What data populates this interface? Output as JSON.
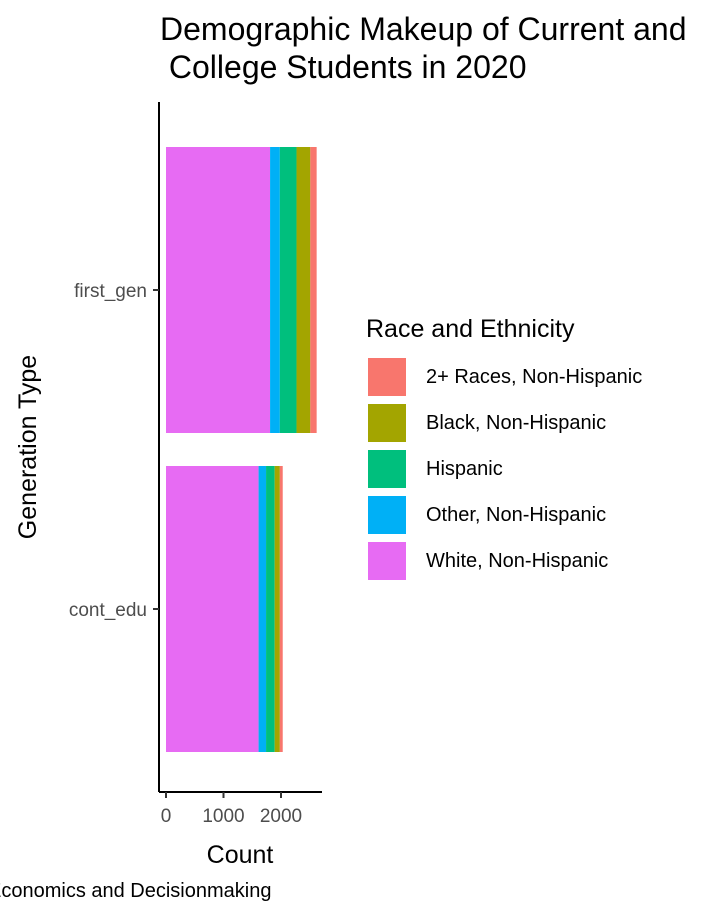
{
  "chart_data": {
    "type": "bar",
    "orientation": "horizontal",
    "stacked": true,
    "title": "Demographic Makeup of Current and\n College Students in 2020",
    "xlabel": "Count",
    "ylabel": "Generation Type",
    "categories": [
      "first_gen",
      "cont_edu"
    ],
    "x_ticks": [
      0,
      1000,
      2000
    ],
    "xlim": [
      0,
      2700
    ],
    "legend_title": "Race and Ethnicity",
    "legend_position": "right",
    "stack_order": [
      "White, Non-Hispanic",
      "Other, Non-Hispanic",
      "Hispanic",
      "Black, Non-Hispanic",
      "2+ Races, Non-Hispanic"
    ],
    "series": [
      {
        "name": "2+ Races, Non-Hispanic",
        "color": "#F8766D",
        "values": [
          110,
          50
        ]
      },
      {
        "name": "Black, Non-Hispanic",
        "color": "#A3A500",
        "values": [
          240,
          90
        ]
      },
      {
        "name": "Hispanic",
        "color": "#00BF7D",
        "values": [
          290,
          150
        ]
      },
      {
        "name": "Other, Non-Hispanic",
        "color": "#00B0F6",
        "values": [
          170,
          130
        ]
      },
      {
        "name": "White, Non-Hispanic",
        "color": "#E76BF3",
        "values": [
          1810,
          1610
        ]
      }
    ],
    "caption": "Economics and Decisionmaking"
  }
}
